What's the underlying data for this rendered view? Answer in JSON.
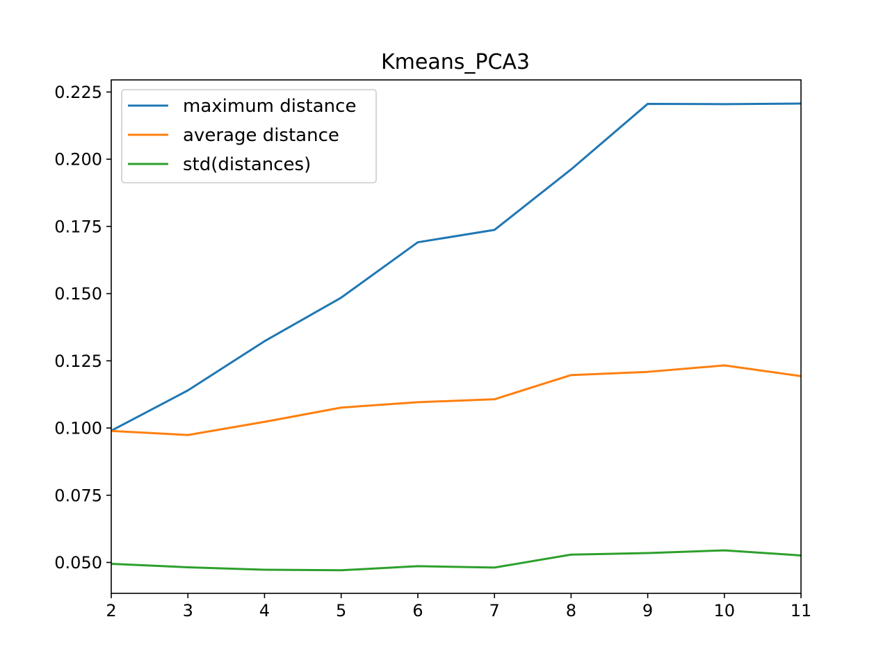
{
  "chart_data": {
    "type": "line",
    "title": "Kmeans_PCA3",
    "xlabel": "",
    "ylabel": "",
    "x": [
      2,
      3,
      4,
      5,
      6,
      7,
      8,
      9,
      10,
      11
    ],
    "xlim": [
      2,
      11
    ],
    "ylim": [
      0.0385,
      0.2295
    ],
    "x_ticks": [
      "2",
      "3",
      "4",
      "5",
      "6",
      "7",
      "8",
      "9",
      "10",
      "11"
    ],
    "y_ticks": [
      "0.050",
      "0.075",
      "0.100",
      "0.125",
      "0.150",
      "0.175",
      "0.200",
      "0.225"
    ],
    "grid": false,
    "legend_position": "upper-left",
    "series": [
      {
        "name": "maximum distance",
        "color": "#1f77b4",
        "values": [
          0.099,
          0.114,
          0.1323,
          0.1485,
          0.1691,
          0.1737,
          0.1962,
          0.2206,
          0.2205,
          0.2207
        ]
      },
      {
        "name": "average distance",
        "color": "#ff7f0e",
        "values": [
          0.0989,
          0.0974,
          0.1023,
          0.1076,
          0.1096,
          0.1107,
          0.1197,
          0.1209,
          0.1233,
          0.1193
        ]
      },
      {
        "name": "std(distances)",
        "color": "#2ca02c",
        "values": [
          0.0495,
          0.0482,
          0.0473,
          0.0471,
          0.0486,
          0.0481,
          0.0529,
          0.0535,
          0.0545,
          0.0526
        ]
      }
    ]
  }
}
